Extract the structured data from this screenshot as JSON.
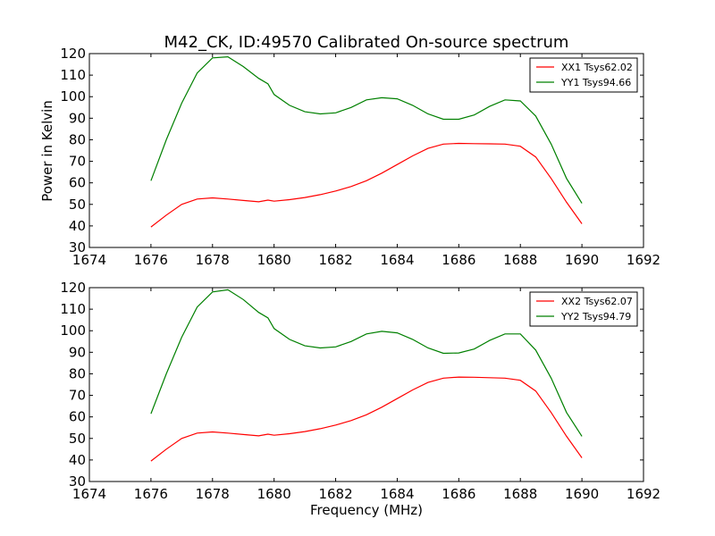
{
  "figure": {
    "title": "M42_CK, ID:49570 Calibrated On-source spectrum",
    "xlabel": "Frequency (MHz)",
    "ylabel": "Power in Kelvin"
  },
  "colors": {
    "red": "#ff0000",
    "green": "#008000"
  },
  "chart_data": [
    {
      "type": "line",
      "title": "M42_CK, ID:49570 Calibrated On-source spectrum",
      "xlabel": "",
      "ylabel": "Power in Kelvin",
      "xlim": [
        1674,
        1692
      ],
      "ylim": [
        30,
        120
      ],
      "xticks": [
        1674,
        1676,
        1678,
        1680,
        1682,
        1684,
        1686,
        1688,
        1690,
        1692
      ],
      "yticks": [
        30,
        40,
        50,
        60,
        70,
        80,
        90,
        100,
        110,
        120
      ],
      "grid": false,
      "legend_position": "top-right",
      "x": [
        1676,
        1676.5,
        1677,
        1677.5,
        1678,
        1678.5,
        1679,
        1679.5,
        1679.8,
        1680,
        1680.5,
        1681,
        1681.5,
        1682,
        1682.5,
        1683,
        1683.5,
        1684,
        1684.5,
        1685,
        1685.5,
        1686,
        1686.5,
        1687,
        1687.5,
        1688,
        1688.5,
        1689,
        1689.5,
        1690
      ],
      "series": [
        {
          "name": "XX1 Tsys62.02",
          "color": "#ff0000",
          "values": [
            39.5,
            45,
            50,
            52.5,
            53,
            52.5,
            51.8,
            51.2,
            52,
            51.5,
            52.2,
            53.2,
            54.5,
            56.2,
            58.3,
            61,
            64.5,
            68.5,
            72.5,
            76,
            78,
            78.3,
            78.2,
            78.1,
            78,
            77,
            72,
            62,
            51,
            41
          ]
        },
        {
          "name": "YY1 Tsys94.66",
          "color": "#008000",
          "values": [
            61,
            80,
            97,
            111,
            118,
            118.5,
            114,
            108.5,
            106,
            101,
            96,
            93,
            92,
            92.5,
            95,
            98.5,
            99.5,
            99,
            96,
            92,
            89.5,
            89.5,
            91.5,
            95.5,
            98.5,
            98,
            91,
            78,
            62,
            50.5
          ]
        }
      ]
    },
    {
      "type": "line",
      "title": "",
      "xlabel": "Frequency (MHz)",
      "ylabel": "",
      "xlim": [
        1674,
        1692
      ],
      "ylim": [
        30,
        120
      ],
      "xticks": [
        1674,
        1676,
        1678,
        1680,
        1682,
        1684,
        1686,
        1688,
        1690,
        1692
      ],
      "yticks": [
        30,
        40,
        50,
        60,
        70,
        80,
        90,
        100,
        110,
        120
      ],
      "grid": false,
      "legend_position": "top-right",
      "x": [
        1676,
        1676.5,
        1677,
        1677.5,
        1678,
        1678.5,
        1679,
        1679.5,
        1679.8,
        1680,
        1680.5,
        1681,
        1681.5,
        1682,
        1682.5,
        1683,
        1683.5,
        1684,
        1684.5,
        1685,
        1685.5,
        1686,
        1686.5,
        1687,
        1687.5,
        1688,
        1688.5,
        1689,
        1689.5,
        1690
      ],
      "series": [
        {
          "name": "XX2 Tsys62.07",
          "color": "#ff0000",
          "values": [
            39.5,
            45,
            50,
            52.5,
            53,
            52.5,
            51.8,
            51.2,
            52,
            51.5,
            52.2,
            53.2,
            54.5,
            56.2,
            58.3,
            61,
            64.5,
            68.5,
            72.5,
            76,
            78,
            78.5,
            78.4,
            78.2,
            78,
            77,
            72,
            62,
            51,
            41
          ]
        },
        {
          "name": "YY2 Tsys94.79",
          "color": "#008000",
          "values": [
            61.5,
            80,
            97,
            111,
            118,
            119,
            114.5,
            108.5,
            106,
            101,
            96,
            93,
            92,
            92.5,
            95,
            98.5,
            99.7,
            99,
            96,
            92,
            89.5,
            89.7,
            91.5,
            95.5,
            98.5,
            98.5,
            91,
            78,
            62,
            51
          ]
        }
      ]
    }
  ]
}
